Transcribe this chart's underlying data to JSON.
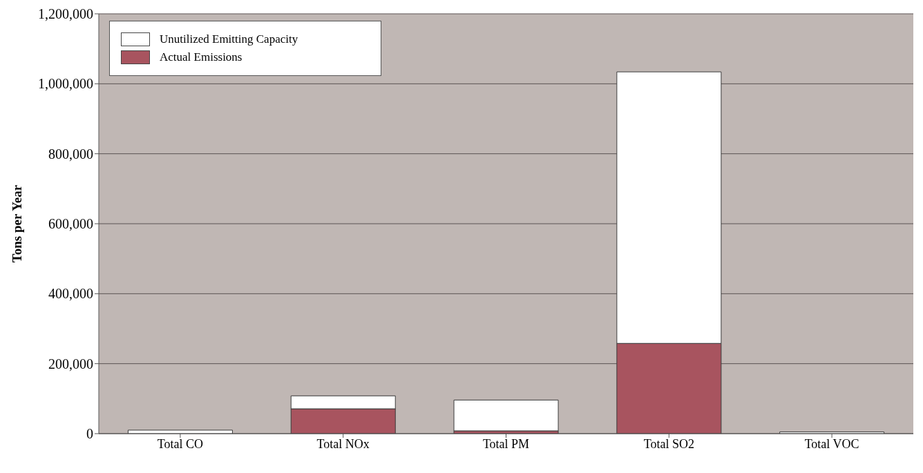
{
  "chart_data": {
    "type": "bar",
    "ylabel": "Tons per Year",
    "categories": [
      "Total CO",
      "Total NOx",
      "Total PM",
      "Total SO2",
      "Total VOC"
    ],
    "stacked": true,
    "series": [
      {
        "name": "Actual Emissions",
        "color": "#a8545f",
        "values": [
          null,
          71000,
          8000,
          258000,
          null
        ]
      },
      {
        "name": "Unutilized Emitting Capacity",
        "color": "#ffffff",
        "values": [
          10000,
          37000,
          88000,
          776000,
          5000
        ]
      }
    ],
    "ylim": [
      0,
      1200000
    ],
    "yticks": [
      0,
      {
        "value": 200000,
        "label": "200,000"
      },
      {
        "value": 400000,
        "label": "400,000"
      },
      {
        "value": 600000,
        "label": "600,000"
      },
      {
        "value": 800000,
        "label": "800,000"
      },
      {
        "value": 1000000,
        "label": "1,000,000"
      },
      {
        "value": 1200000,
        "label": "1,200,000"
      }
    ],
    "grid": "y",
    "legend": "top left"
  }
}
